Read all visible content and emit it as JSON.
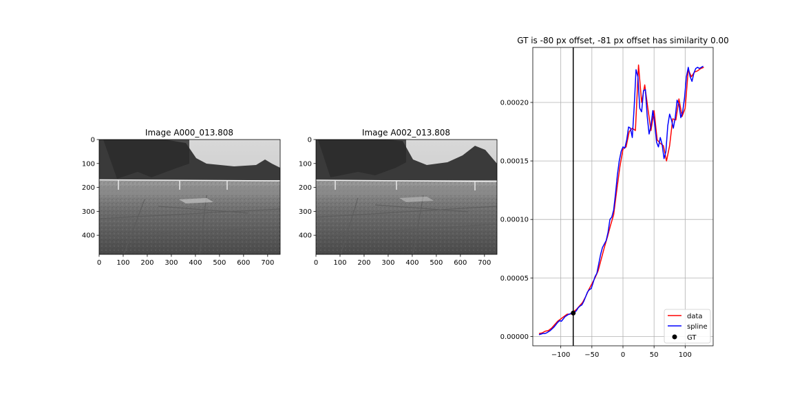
{
  "chart_data": [
    {
      "type": "image",
      "title": "Image A000_013.808",
      "image_kind": "grayscale outdoor photo: trees, fence, paved/cracked ground",
      "xlim": [
        0,
        752
      ],
      "ylim": [
        480,
        0
      ],
      "xticks": [
        "0",
        "100",
        "200",
        "300",
        "400",
        "500",
        "600",
        "700"
      ],
      "yticks": [
        "0",
        "100",
        "200",
        "300",
        "400"
      ]
    },
    {
      "type": "image",
      "title": "Image A002_013.808",
      "image_kind": "grayscale outdoor photo: trees, fence, paved/cracked ground",
      "xlim": [
        0,
        752
      ],
      "ylim": [
        480,
        0
      ],
      "xticks": [
        "0",
        "100",
        "200",
        "300",
        "400",
        "500",
        "600",
        "700"
      ],
      "yticks": [
        "0",
        "100",
        "200",
        "300",
        "400"
      ]
    },
    {
      "type": "line",
      "title": "GT is -80 px offset, -81 px offset has similarity 0.00",
      "xlabel": "",
      "ylabel": "",
      "xlim": [
        -145,
        145
      ],
      "ylim": [
        -8e-06,
        0.000247
      ],
      "xticks": [
        -100,
        -50,
        0,
        50,
        100
      ],
      "xtick_labels": [
        "−100",
        "−50",
        "0",
        "50",
        "100"
      ],
      "yticks": [
        0.0,
        5e-05,
        0.0001,
        0.00015,
        0.0002
      ],
      "ytick_labels": [
        "0.00000",
        "0.00005",
        "0.00010",
        "0.00015",
        "0.00020"
      ],
      "grid": true,
      "legend_position": "lower-right",
      "vline_x": -80,
      "series": [
        {
          "name": "data",
          "color": "#ff0000",
          "x": [
            -135,
            -130,
            -125,
            -120,
            -115,
            -110,
            -105,
            -100,
            -95,
            -90,
            -85,
            -80,
            -75,
            -70,
            -65,
            -60,
            -55,
            -50,
            -45,
            -40,
            -35,
            -30,
            -25,
            -20,
            -15,
            -10,
            -5,
            0,
            5,
            10,
            15,
            20,
            25,
            30,
            35,
            40,
            45,
            50,
            55,
            60,
            65,
            70,
            75,
            80,
            85,
            90,
            95,
            100,
            105,
            110,
            115,
            120,
            125,
            130
          ],
          "y": [
            2.5e-06,
            3e-06,
            4.5e-06,
            5e-06,
            7e-06,
            1e-05,
            1.3e-05,
            1.5e-05,
            1.7e-05,
            1.9e-05,
            1.9e-05,
            2.1e-05,
            2.3e-05,
            2.6e-05,
            2.9e-05,
            3.4e-05,
            4e-05,
            4.5e-05,
            5e-05,
            5.6e-05,
            6.6e-05,
            7.6e-05,
            8.5e-05,
            9.5e-05,
            0.000104,
            0.000125,
            0.000145,
            0.00016,
            0.000162,
            0.000175,
            0.000178,
            0.000176,
            0.000232,
            0.0002,
            0.000215,
            0.000195,
            0.000176,
            0.000193,
            0.000168,
            0.000165,
            0.000163,
            0.00015,
            0.000163,
            0.000186,
            0.000185,
            0.000203,
            0.000188,
            0.000195,
            0.000228,
            0.000222,
            0.000226,
            0.000227,
            0.000229,
            0.00023
          ]
        },
        {
          "name": "spline",
          "color": "#0000ff",
          "x": [
            -135,
            -132,
            -129,
            -126,
            -123,
            -120,
            -117,
            -114,
            -111,
            -108,
            -105,
            -102,
            -99,
            -96,
            -93,
            -90,
            -87,
            -84,
            -81,
            -78,
            -75,
            -72,
            -69,
            -66,
            -63,
            -60,
            -57,
            -54,
            -51,
            -48,
            -45,
            -42,
            -39,
            -36,
            -33,
            -30,
            -27,
            -24,
            -21,
            -18,
            -15,
            -12,
            -9,
            -6,
            -3,
            0,
            3,
            6,
            9,
            12,
            15,
            18,
            21,
            24,
            27,
            30,
            33,
            36,
            39,
            42,
            45,
            48,
            51,
            54,
            57,
            60,
            63,
            66,
            69,
            72,
            75,
            78,
            81,
            84,
            87,
            90,
            93,
            96,
            99,
            102,
            105,
            108,
            111,
            114,
            117,
            120,
            123,
            126,
            129
          ],
          "y": [
            1.5e-06,
            2e-06,
            2.5e-06,
            2.5e-06,
            3e-06,
            4e-06,
            5e-06,
            6.5e-06,
            8e-06,
            1e-05,
            1.2e-05,
            1.35e-05,
            1.3e-05,
            1.5e-05,
            1.7e-05,
            1.8e-05,
            1.9e-05,
            1.95e-05,
            2e-05,
            2.05e-05,
            2.2e-05,
            2.45e-05,
            2.6e-05,
            2.7e-05,
            3e-05,
            3.4e-05,
            3.8e-05,
            4e-05,
            4.1e-05,
            4.6e-05,
            5.1e-05,
            5.4e-05,
            6.2e-05,
            7e-05,
            7.6e-05,
            7.9e-05,
            8.2e-05,
            8.9e-05,
            0.0001,
            0.000102,
            0.000108,
            0.000122,
            0.000138,
            0.00015,
            0.000158,
            0.000162,
            0.000161,
            0.000168,
            0.000179,
            0.000178,
            0.00017,
            0.000196,
            0.000228,
            0.000222,
            0.000195,
            0.000192,
            0.00021,
            0.000211,
            0.000188,
            0.000173,
            0.00018,
            0.000193,
            0.000182,
            0.000166,
            0.000162,
            0.00017,
            0.000164,
            0.000152,
            0.000158,
            0.00018,
            0.00019,
            0.000185,
            0.000178,
            0.000187,
            0.000202,
            0.000198,
            0.000187,
            0.000192,
            0.000204,
            0.000222,
            0.00023,
            0.000222,
            0.000218,
            0.000225,
            0.000229,
            0.00023,
            0.000229,
            0.00023,
            0.000231
          ]
        },
        {
          "name": "GT",
          "color": "#000000",
          "x": [
            -80
          ],
          "y": [
            2e-05
          ]
        }
      ]
    }
  ]
}
